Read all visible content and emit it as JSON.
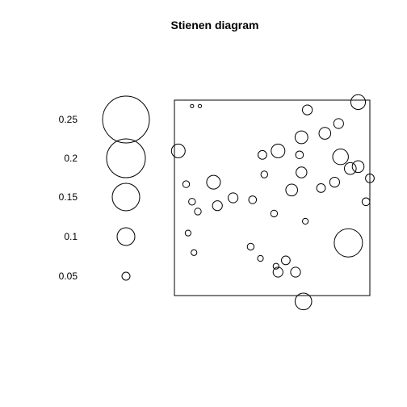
{
  "chart_data": {
    "type": "scatter",
    "title": "Stienen diagram",
    "xlabel": "",
    "ylabel": "",
    "xlim": [
      0,
      1
    ],
    "ylim": [
      0,
      1
    ],
    "grid": false,
    "legend": {
      "placement": "left",
      "values": [
        0.25,
        0.2,
        0.15,
        0.1,
        0.05
      ],
      "labels": [
        "0.25",
        "0.2",
        "0.15",
        "0.1",
        "0.05"
      ]
    },
    "series": [
      {
        "x": [
          0.09,
          0.13,
          0.02,
          0.06,
          0.09,
          0.12,
          0.2,
          0.22,
          0.3,
          0.4,
          0.45,
          0.53,
          0.46,
          0.51,
          0.6,
          0.64,
          0.65,
          0.65,
          0.68,
          0.75,
          0.77,
          0.82,
          0.84,
          0.85,
          0.9,
          0.94,
          0.94,
          0.98,
          1.0,
          0.53,
          0.67,
          0.07,
          0.1,
          0.39,
          0.44,
          0.52,
          0.57,
          0.62,
          0.66,
          0.89
        ],
        "y": [
          0.97,
          0.97,
          0.74,
          0.57,
          0.48,
          0.43,
          0.58,
          0.46,
          0.5,
          0.49,
          0.72,
          0.74,
          0.62,
          0.42,
          0.54,
          0.72,
          0.63,
          0.81,
          0.95,
          0.55,
          0.83,
          0.58,
          0.88,
          0.71,
          0.65,
          0.66,
          0.99,
          0.48,
          0.6,
          0.12,
          0.38,
          0.32,
          0.22,
          0.25,
          0.19,
          0.15,
          0.18,
          0.12,
          -0.03,
          0.27
        ],
        "r": [
          0.035,
          0.035,
          0.14,
          0.07,
          0.07,
          0.07,
          0.14,
          0.1,
          0.1,
          0.08,
          0.09,
          0.14,
          0.07,
          0.07,
          0.12,
          0.08,
          0.11,
          0.13,
          0.1,
          0.09,
          0.12,
          0.1,
          0.1,
          0.16,
          0.12,
          0.12,
          0.15,
          0.08,
          0.09,
          0.1,
          0.06,
          0.06,
          0.06,
          0.07,
          0.06,
          0.06,
          0.09,
          0.1,
          0.17,
          0.29
        ]
      }
    ]
  }
}
